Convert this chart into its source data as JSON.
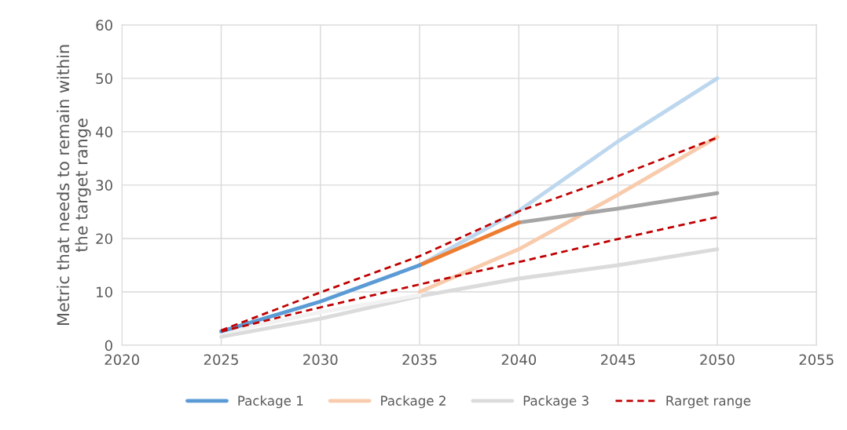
{
  "chart_data": {
    "type": "line",
    "ylabel": "Metric that needs to remain within\nthe target range",
    "xlim": [
      2020,
      2055
    ],
    "xticks": [
      2020,
      2025,
      2030,
      2035,
      2040,
      2045,
      2050,
      2055
    ],
    "ylim": [
      0,
      60
    ],
    "yticks": [
      0,
      10,
      20,
      30,
      40,
      50,
      60
    ],
    "grid": true,
    "legend": "bottom",
    "marker": "none",
    "series": [
      {
        "name": "Package 1",
        "color": "#5b9bd5",
        "x": [
          2025,
          2030,
          2035
        ],
        "values": [
          2.6,
          8.2,
          15.0
        ]
      },
      {
        "color": "#ed7d31",
        "x": [
          2035,
          2040
        ],
        "values": [
          15.0,
          23.0
        ]
      },
      {
        "color": "#a5a5a5",
        "x": [
          2040,
          2045,
          2050
        ],
        "values": [
          23.0,
          25.6,
          28.5
        ]
      },
      {
        "color": "#f2f2f2",
        "x": [
          2025,
          2030,
          2035
        ],
        "values": [
          2.3,
          6.2,
          9.4
        ]
      },
      {
        "color": "#bdd7ee",
        "x": [
          2035,
          2040,
          2045,
          2050
        ],
        "values": [
          15.0,
          25.2,
          38.2,
          50.0
        ]
      },
      {
        "name": "Package 2",
        "color": "#f8cbad",
        "x": [
          2035,
          2040,
          2045,
          2050
        ],
        "values": [
          10.0,
          18.0,
          28.2,
          39.0
        ]
      },
      {
        "name": "Package 3",
        "color": "#dbdbdb",
        "x": [
          2025,
          2030,
          2035,
          2040,
          2045,
          2050
        ],
        "values": [
          1.6,
          5.0,
          9.2,
          12.5,
          15.0,
          18.0
        ]
      },
      {
        "name": "Rarget range",
        "color": "#c00000",
        "line_style": "dashed",
        "x": [
          2025,
          2030,
          2035,
          2040,
          2045,
          2050
        ],
        "values": [
          2.8,
          9.9,
          16.7,
          25.1,
          31.7,
          38.9
        ]
      },
      {
        "color": "#c00000",
        "line_style": "dashed",
        "x": [
          2025,
          2030,
          2035,
          2040,
          2045,
          2050
        ],
        "values": [
          2.6,
          7.1,
          11.4,
          15.6,
          19.9,
          24.0
        ]
      }
    ]
  }
}
